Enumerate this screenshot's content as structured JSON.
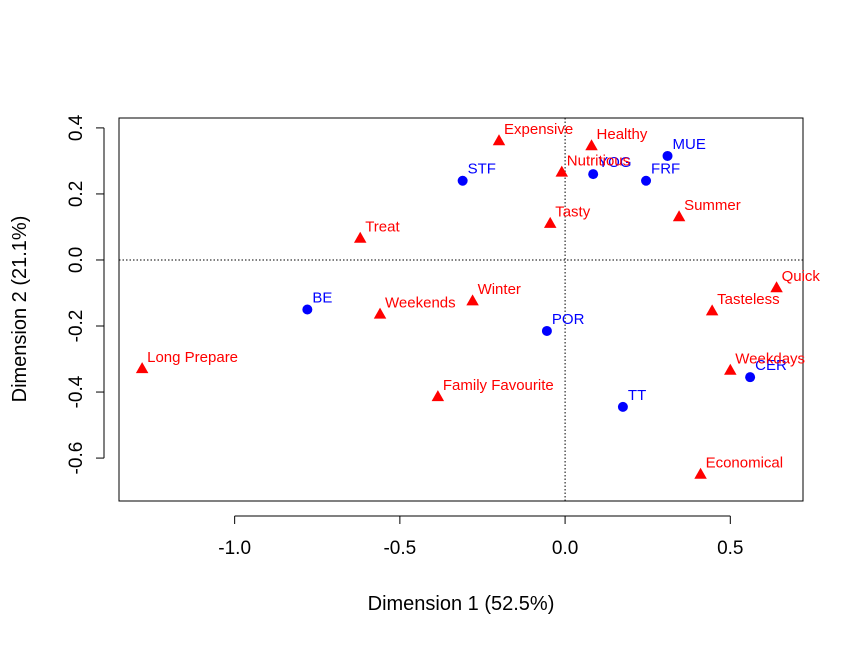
{
  "chart_data": {
    "type": "scatter",
    "title": "",
    "xlabel": "Dimension 1 (52.5%)",
    "ylabel": "Dimension 2 (21.1%)",
    "xlim": [
      -1.35,
      0.72
    ],
    "ylim": [
      -0.73,
      0.43
    ],
    "xticks": [
      -1.0,
      -0.5,
      0.0,
      0.5
    ],
    "xtick_labels": [
      "-1.0",
      "-0.5",
      "0.0",
      "0.5"
    ],
    "yticks": [
      -0.6,
      -0.4,
      -0.2,
      0.0,
      0.2,
      0.4
    ],
    "ytick_labels": [
      "-0.6",
      "-0.4",
      "-0.2",
      "0.0",
      "0.2",
      "0.4"
    ],
    "reference_lines": {
      "x": 0,
      "y": 0,
      "style": "dotted"
    },
    "grid": false,
    "legend": "none",
    "series": [
      {
        "marker": "circle",
        "color": "#0000FF",
        "points": [
          {
            "label": "STF",
            "x": -0.31,
            "y": 0.24
          },
          {
            "label": "MUE",
            "x": 0.31,
            "y": 0.315
          },
          {
            "label": "YOG",
            "x": 0.085,
            "y": 0.26
          },
          {
            "label": "FRF",
            "x": 0.245,
            "y": 0.24
          },
          {
            "label": "BE",
            "x": -0.78,
            "y": -0.15
          },
          {
            "label": "POR",
            "x": -0.055,
            "y": -0.215
          },
          {
            "label": "TT",
            "x": 0.175,
            "y": -0.445
          },
          {
            "label": "CER",
            "x": 0.56,
            "y": -0.355
          }
        ]
      },
      {
        "marker": "triangle",
        "color": "#FF0000",
        "points": [
          {
            "label": "Expensive",
            "x": -0.2,
            "y": 0.36
          },
          {
            "label": "Healthy",
            "x": 0.08,
            "y": 0.345
          },
          {
            "label": "Nutritious",
            "x": -0.01,
            "y": 0.265
          },
          {
            "label": "Summer",
            "x": 0.345,
            "y": 0.13
          },
          {
            "label": "Tasty",
            "x": -0.045,
            "y": 0.11
          },
          {
            "label": "Treat",
            "x": -0.62,
            "y": 0.065
          },
          {
            "label": "Quick",
            "x": 0.64,
            "y": -0.085
          },
          {
            "label": "Winter",
            "x": -0.28,
            "y": -0.125
          },
          {
            "label": "Weekends",
            "x": -0.56,
            "y": -0.165
          },
          {
            "label": "Tasteless",
            "x": 0.445,
            "y": -0.155
          },
          {
            "label": "Long Prepare",
            "x": -1.28,
            "y": -0.33
          },
          {
            "label": "Weekdays",
            "x": 0.5,
            "y": -0.335
          },
          {
            "label": "Family Favourite",
            "x": -0.385,
            "y": -0.415
          },
          {
            "label": "Economical",
            "x": 0.41,
            "y": -0.65
          }
        ]
      }
    ]
  }
}
